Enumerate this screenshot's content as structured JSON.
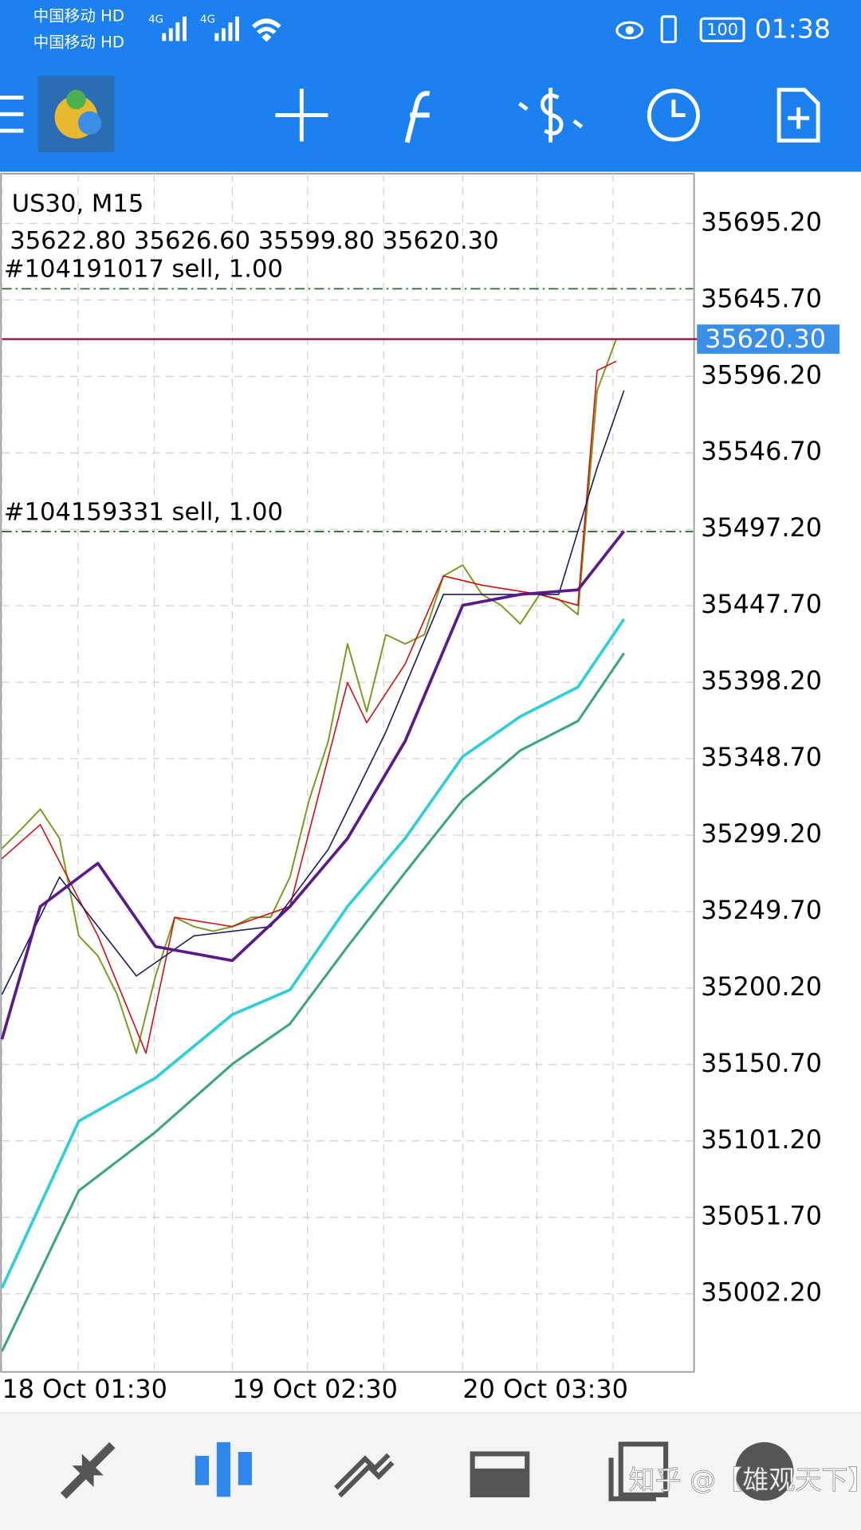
{
  "status_bar": {
    "carriers": [
      "中国移动 HD",
      "中国移动 HD"
    ],
    "network": [
      "4G",
      "4G"
    ],
    "battery": "100",
    "time": "01:38"
  },
  "chart_data": {
    "type": "line",
    "title": "US30, M15",
    "subtitle": "35622.80 35626.60 35599.80 35620.30",
    "xlim": [
      0,
      36
    ],
    "xticks": [
      {
        "value": 0,
        "label": "18 Oct 01:30"
      },
      {
        "value": 12,
        "label": "19 Oct 02:30"
      },
      {
        "value": 24,
        "label": "20 Oct 03:30"
      }
    ],
    "ylim": [
      34952.3,
      35727.4
    ],
    "yticks": [
      {
        "value": 35695.2,
        "label": "35695.20"
      },
      {
        "value": 35645.7,
        "label": "35645.70"
      },
      {
        "value": 35596.2,
        "label": "35596.20"
      },
      {
        "value": 35546.7,
        "label": "35546.70"
      },
      {
        "value": 35497.2,
        "label": "35497.20"
      },
      {
        "value": 35447.7,
        "label": "35447.70"
      },
      {
        "value": 35398.2,
        "label": "35398.20"
      },
      {
        "value": 35348.7,
        "label": "35348.70"
      },
      {
        "value": 35299.2,
        "label": "35299.20"
      },
      {
        "value": 35249.7,
        "label": "35249.70"
      },
      {
        "value": 35200.2,
        "label": "35200.20"
      },
      {
        "value": 35150.7,
        "label": "35150.70"
      },
      {
        "value": 35101.2,
        "label": "35101.20"
      },
      {
        "value": 35051.7,
        "label": "35051.70"
      },
      {
        "value": 35002.2,
        "label": "35002.20"
      }
    ],
    "grid": true,
    "series": [
      {
        "color": "#7a9a1e",
        "width": 1.6,
        "x": [
          0,
          1,
          2,
          3,
          4,
          5,
          6,
          7,
          8,
          9,
          10,
          11,
          12,
          13,
          14,
          15,
          16,
          17,
          18,
          19,
          20,
          21,
          22,
          23,
          24,
          25,
          26,
          27,
          28,
          29,
          30,
          31,
          32
        ],
        "values": [
          35290.5,
          35303,
          35316,
          35297,
          35234,
          35221,
          35196,
          35158,
          35208,
          35246,
          35240,
          35237,
          35240,
          35246,
          35246,
          35272,
          35322,
          35360,
          35423,
          35379,
          35429,
          35423,
          35429,
          35467,
          35474,
          35455,
          35448,
          35436,
          35455,
          35452,
          35442,
          35587,
          35620.3
        ]
      },
      {
        "color": "#d01010",
        "width": 1.3,
        "x": [
          0,
          2,
          5,
          7.5,
          9,
          12,
          15,
          18,
          19,
          21,
          23,
          25,
          28,
          30,
          31,
          32
        ],
        "values": [
          35284,
          35306,
          35234,
          35158,
          35246,
          35240,
          35253,
          35398,
          35372,
          35410,
          35467,
          35461,
          35455,
          35448,
          35600,
          35606
        ]
      },
      {
        "color": "#1a1a5e",
        "width": 1.3,
        "x": [
          0,
          3,
          7,
          10,
          14,
          17,
          20,
          23,
          26,
          29,
          31,
          32.4
        ],
        "values": [
          35196,
          35272,
          35208,
          35234,
          35240,
          35290,
          35366,
          35455,
          35455,
          35455,
          35537,
          35587
        ]
      },
      {
        "color": "#5b1a8a",
        "width": 3,
        "x": [
          0,
          2,
          5,
          8,
          12,
          15,
          18,
          21,
          24,
          27,
          30,
          32.4
        ],
        "values": [
          35167,
          35253,
          35281,
          35227,
          35218,
          35253,
          35297,
          35360,
          35448,
          35455,
          35458,
          35496
        ]
      },
      {
        "color": "#2ed0d8",
        "width": 3,
        "x": [
          0,
          4,
          8,
          12,
          15,
          18,
          21,
          24,
          27,
          30,
          32.4
        ],
        "values": [
          35006,
          35114,
          35142,
          35183,
          35199,
          35253,
          35297,
          35350,
          35376,
          35395,
          35439
        ]
      },
      {
        "color": "#3aa67a",
        "width": 2.5,
        "x": [
          0,
          4,
          8,
          12,
          15,
          18,
          21,
          24,
          27,
          30,
          32.4
        ],
        "values": [
          34965,
          35069,
          35107,
          35151,
          35177,
          35227,
          35275,
          35322,
          35354,
          35373,
          35417
        ]
      }
    ],
    "annotations": [
      {
        "label": "#104191017 sell, 1.00",
        "value": 35652.9
      },
      {
        "label": "#104159331 sell, 1.00",
        "value": 35495.7
      }
    ],
    "bid": {
      "value": 35620.3,
      "label": "35620.30"
    }
  },
  "watermark": "知乎 @【雄观天下】"
}
